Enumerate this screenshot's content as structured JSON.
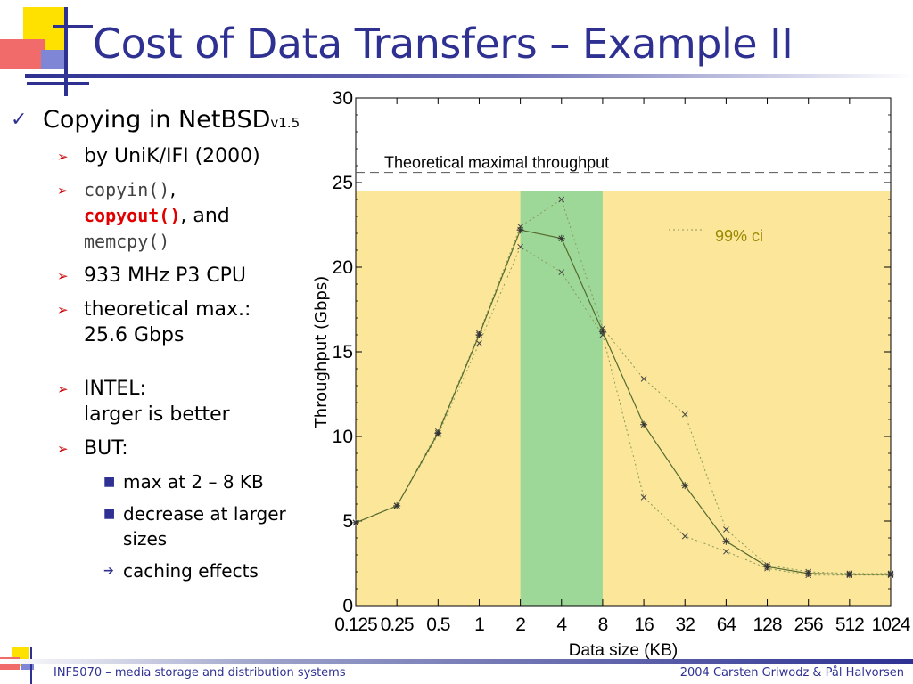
{
  "slide": {
    "title": "Cost of Data Transfers – Example II",
    "colors": {
      "title": "#2e3192",
      "accent_red": "#e00000"
    }
  },
  "bullets": {
    "main": {
      "text": "Copying in NetBSD",
      "suffix": "v1.5"
    },
    "sub1": "by UniK/IFI (2000)",
    "sub2": {
      "part1": "copyin()",
      "sep1": ",",
      "part2": "copyout()",
      "sep2": ", and",
      "part3": "memcpy()"
    },
    "sub3": "933 MHz P3 CPU",
    "sub4": {
      "line1": "theoretical max.:",
      "line2": "25.6 Gbps"
    },
    "sub5": {
      "line1": "INTEL:",
      "line2": "larger is better"
    },
    "sub6": "BUT:",
    "subsub1": "max at 2 – 8 KB",
    "subsub2": "decrease at larger sizes",
    "subsub3": "caching effects"
  },
  "chart_data": {
    "type": "line",
    "title": "",
    "xlabel": "Data size (KB)",
    "ylabel": "Throughput (Gbps)",
    "categories": [
      "0.125",
      "0.25",
      "0.5",
      "1",
      "2",
      "4",
      "8",
      "16",
      "32",
      "64",
      "128",
      "256",
      "512",
      "1024"
    ],
    "ylim": [
      0,
      30
    ],
    "yticks": [
      "0",
      "5",
      "10",
      "15",
      "20",
      "25",
      "30"
    ],
    "series": [
      {
        "name": "",
        "values": [
          4.9,
          5.9,
          10.2,
          16.0,
          22.2,
          21.7,
          16.2,
          10.7,
          7.1,
          3.8,
          2.3,
          1.9,
          1.85,
          1.85
        ]
      }
    ],
    "ci": {
      "label": "99% ci",
      "upper": [
        4.9,
        5.9,
        10.3,
        16.1,
        22.4,
        24.0,
        16.4,
        13.4,
        11.3,
        4.5,
        2.4,
        2.0,
        1.9,
        1.9
      ],
      "lower": [
        4.9,
        5.9,
        10.1,
        15.5,
        21.2,
        19.7,
        16.0,
        6.4,
        4.1,
        3.2,
        2.2,
        1.8,
        1.8,
        1.8
      ]
    },
    "theoretical_max": {
      "value": 25.6,
      "label": "Theoretical maximal throughput"
    },
    "shaded_region": {
      "y_max": 24.5,
      "color": "#fbe69a"
    },
    "highlight_region": {
      "from": "2",
      "to": "8",
      "color": "#9ed898"
    },
    "colors": {
      "line": "#556b2f",
      "ci": "#8a9a5b",
      "ci_label": "#9a8a00"
    }
  },
  "footer": {
    "left": "INF5070 – media storage and distribution systems",
    "right": "2004  Carsten Griwodz & Pål Halvorsen"
  }
}
